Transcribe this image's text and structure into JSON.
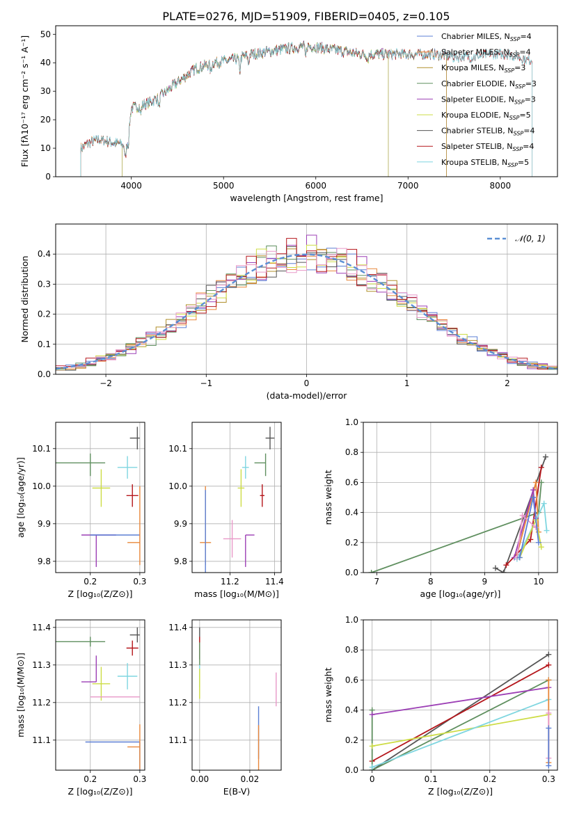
{
  "figure_title": "PLATE=0276, MJD=51909, FIBERID=0405, z=0.105",
  "chart_data": [
    {
      "id": "spectrum",
      "type": "line",
      "xlabel": "wavelength [Angstrom, rest frame]",
      "ylabel": "Flux [fλ10⁻¹⁷ erg cm⁻² s⁻¹ A⁻¹]",
      "xlim": [
        3180,
        8620
      ],
      "ylim": [
        0,
        53
      ],
      "xticks": [
        4000,
        5000,
        6000,
        7000,
        8000
      ],
      "yticks": [
        0,
        10,
        20,
        30,
        40,
        50
      ],
      "grid": false,
      "legend_position": "top-right",
      "continuum": {
        "x": [
          3450,
          3550,
          3650,
          3800,
          3950,
          4000,
          4100,
          4200,
          4300,
          4500,
          4700,
          4900,
          5100,
          5300,
          5500,
          5700,
          5900,
          6100,
          6300,
          6500,
          6700,
          6900,
          7100,
          7300,
          7500,
          7700,
          7900,
          8100,
          8300
        ],
        "y": [
          10,
          12,
          13,
          12,
          11,
          24,
          25,
          26,
          28,
          33,
          38,
          40,
          41,
          43,
          44,
          45,
          46,
          45,
          44,
          43,
          43,
          43,
          43,
          43,
          42,
          42,
          43,
          43,
          41
        ]
      },
      "series": [
        {
          "name": "Chabrier MILES, N_SSP=4",
          "label_main": "Chabrier MILES, N",
          "label_sub": "SSP",
          "label_tail": "=4",
          "color": "#5b7fd4",
          "x_range": [
            3450,
            7420
          ]
        },
        {
          "name": "Salpeter MILES, N_SSP=4",
          "label_main": "Salpeter MILES, N",
          "label_sub": "SSP",
          "label_tail": "=4",
          "color": "#e8873a",
          "x_range": [
            3450,
            7420
          ]
        },
        {
          "name": "Kroupa MILES, N_SSP=3",
          "label_main": "Kroupa MILES, N",
          "label_sub": "SSP",
          "label_tail": "=3",
          "color": "#b08f2a",
          "x_range": [
            3450,
            7420
          ]
        },
        {
          "name": "Chabrier ELODIE, N_SSP=3",
          "label_main": "Chabrier ELODIE, N",
          "label_sub": "SSP",
          "label_tail": "=3",
          "color": "#5f8f5f",
          "x_range": [
            3900,
            6790
          ]
        },
        {
          "name": "Salpeter ELODIE, N_SSP=3",
          "label_main": "Salpeter ELODIE, N",
          "label_sub": "SSP",
          "label_tail": "=3",
          "color": "#9c3fb5",
          "x_range": [
            3900,
            6790
          ]
        },
        {
          "name": "Kroupa ELODIE, N_SSP=5",
          "label_main": "Kroupa ELODIE, N",
          "label_sub": "SSP",
          "label_tail": "=5",
          "color": "#cddc45",
          "x_range": [
            3900,
            6790
          ]
        },
        {
          "name": "Chabrier STELIB, N_SSP=4",
          "label_main": "Chabrier STELIB, N",
          "label_sub": "SSP",
          "label_tail": "=4",
          "color": "#555555",
          "x_range": [
            3450,
            8350
          ]
        },
        {
          "name": "Salpeter STELIB, N_SSP=4",
          "label_main": "Salpeter STELIB, N",
          "label_sub": "SSP",
          "label_tail": "=4",
          "color": "#b5161b",
          "x_range": [
            3450,
            8350
          ]
        },
        {
          "name": "Kroupa STELIB, N_SSP=5",
          "label_main": "Kroupa STELIB, N",
          "label_sub": "SSP",
          "label_tail": "=5",
          "color": "#7fd6e0",
          "x_range": [
            3450,
            8350
          ]
        }
      ]
    },
    {
      "id": "residuals",
      "type": "bar",
      "xlabel": "(data-model)/error",
      "ylabel": "Normed distribution",
      "xlim": [
        -2.5,
        2.5
      ],
      "ylim": [
        0,
        0.5
      ],
      "xticks": [
        -2,
        -1,
        0,
        1,
        2
      ],
      "yticks": [
        0.0,
        0.1,
        0.2,
        0.3,
        0.4
      ],
      "grid": true,
      "legend_position": "top-right",
      "reference": {
        "name": "𝒩(0, 1)",
        "color": "#5b8fd4",
        "mean": 0,
        "sigma": 1
      },
      "bin_width": 0.1,
      "bin_centers_from": -2.45,
      "colors": [
        "#5b7fd4",
        "#e8873a",
        "#b08f2a",
        "#5f8f5f",
        "#9c3fb5",
        "#cddc45",
        "#555555",
        "#b5161b",
        "#e898c8"
      ]
    },
    {
      "id": "age-vs-Z",
      "type": "scatter",
      "xlabel": "Z [log₁₀(Z/Z⊙)]",
      "ylabel": "age  [log₁₀(age/yr)]",
      "xlim": [
        0.13,
        0.31
      ],
      "ylim": [
        9.77,
        10.17
      ],
      "xticks": [
        0.2,
        0.3
      ],
      "yticks": [
        9.8,
        9.9,
        10.0,
        10.1
      ],
      "grid": true,
      "points": [
        {
          "x": 0.2,
          "y": 10.062,
          "xerr": [
            0.07,
            0.03
          ],
          "yerr": [
            0.035,
            0.025
          ],
          "color": "#5f8f5f"
        },
        {
          "x": 0.295,
          "y": 10.128,
          "xerr": [
            0.015,
            0.005
          ],
          "yerr": [
            0.03,
            0.03
          ],
          "color": "#555555"
        },
        {
          "x": 0.275,
          "y": 10.05,
          "xerr": [
            0.02,
            0.02
          ],
          "yerr": [
            0.03,
            0.03
          ],
          "color": "#7fd6e0"
        },
        {
          "x": 0.222,
          "y": 9.995,
          "xerr": [
            0.018,
            0.018
          ],
          "yerr": [
            0.05,
            0.05
          ],
          "color": "#cddc45"
        },
        {
          "x": 0.285,
          "y": 9.975,
          "xerr": [
            0.012,
            0.012
          ],
          "yerr": [
            0.03,
            0.03
          ],
          "color": "#b5161b"
        },
        {
          "x": 0.212,
          "y": 9.87,
          "xerr": [
            0.03,
            0.04
          ],
          "yerr": [
            0.085,
            0.0
          ],
          "color": "#9c3fb5"
        },
        {
          "x": 0.25,
          "y": 9.87,
          "xerr": [
            0.05,
            0.05
          ],
          "yerr": [
            0.0,
            0.0
          ],
          "color": "#5b7fd4"
        },
        {
          "x": 0.3,
          "y": 9.85,
          "xerr": [
            0.025,
            0.0
          ],
          "yerr": [
            0.06,
            0.15
          ],
          "color": "#e8873a"
        }
      ]
    },
    {
      "id": "age-vs-mass",
      "type": "scatter",
      "xlabel": "mass [log₁₀(M/M⊙)]",
      "ylabel": "",
      "xlim": [
        11.03,
        11.43
      ],
      "ylim": [
        9.77,
        10.17
      ],
      "xticks": [
        11.2,
        11.4
      ],
      "yticks": [
        9.8,
        9.9,
        10.0,
        10.1
      ],
      "grid": true,
      "points": [
        {
          "x": 11.38,
          "y": 10.128,
          "xerr": [
            0.02,
            0.02
          ],
          "yerr": [
            0.03,
            0.03
          ],
          "color": "#555555"
        },
        {
          "x": 11.36,
          "y": 10.062,
          "xerr": [
            0.05,
            0.0
          ],
          "yerr": [
            0.035,
            0.025
          ],
          "color": "#5f8f5f"
        },
        {
          "x": 11.27,
          "y": 10.05,
          "xerr": [
            0.015,
            0.015
          ],
          "yerr": [
            0.03,
            0.03
          ],
          "color": "#7fd6e0"
        },
        {
          "x": 11.25,
          "y": 9.995,
          "xerr": [
            0.015,
            0.015
          ],
          "yerr": [
            0.05,
            0.05
          ],
          "color": "#cddc45"
        },
        {
          "x": 11.345,
          "y": 9.975,
          "xerr": [
            0.01,
            0.01
          ],
          "yerr": [
            0.03,
            0.03
          ],
          "color": "#b5161b"
        },
        {
          "x": 11.27,
          "y": 9.87,
          "xerr": [
            0.0,
            0.04
          ],
          "yerr": [
            0.085,
            0.0
          ],
          "color": "#9c3fb5"
        },
        {
          "x": 11.21,
          "y": 9.86,
          "xerr": [
            0.04,
            0.04
          ],
          "yerr": [
            0.05,
            0.05
          ],
          "color": "#e898c8"
        },
        {
          "x": 11.09,
          "y": 9.85,
          "xerr": [
            0.025,
            0.025
          ],
          "yerr": [
            0.06,
            0.15
          ],
          "color": "#e8873a"
        },
        {
          "x": 11.09,
          "y": 9.87,
          "xerr": [
            0.0,
            0.0
          ],
          "yerr": [
            0.12,
            0.12
          ],
          "color": "#5b7fd4"
        }
      ]
    },
    {
      "id": "weight-vs-age",
      "type": "line",
      "xlabel": "age  [log₁₀(age/yr)]",
      "ylabel": "mass weight",
      "xlim": [
        6.75,
        10.35
      ],
      "ylim": [
        0,
        1
      ],
      "xticks": [
        7,
        8,
        9,
        10
      ],
      "yticks": [
        0.0,
        0.2,
        0.4,
        0.6,
        0.8,
        1.0
      ],
      "grid": true,
      "series": [
        {
          "color": "#5f8f5f",
          "x": [
            6.9,
            10.0,
            10.05
          ],
          "y": [
            0.0,
            0.4,
            0.6
          ]
        },
        {
          "color": "#555555",
          "x": [
            9.2,
            9.35,
            10.13
          ],
          "y": [
            0.03,
            0.0,
            0.77
          ]
        },
        {
          "color": "#b5161b",
          "x": [
            9.4,
            9.85,
            10.05
          ],
          "y": [
            0.05,
            0.22,
            0.7
          ]
        },
        {
          "color": "#e8873a",
          "x": [
            9.6,
            9.95,
            10.0
          ],
          "y": [
            0.12,
            0.6,
            0.27
          ]
        },
        {
          "color": "#9c3fb5",
          "x": [
            9.55,
            9.9,
            9.95
          ],
          "y": [
            0.1,
            0.55,
            0.36
          ]
        },
        {
          "color": "#7fd6e0",
          "x": [
            9.6,
            10.1,
            10.15
          ],
          "y": [
            0.09,
            0.46,
            0.28
          ]
        },
        {
          "color": "#cddc45",
          "x": [
            9.65,
            9.95,
            10.05
          ],
          "y": [
            0.1,
            0.35,
            0.17
          ]
        },
        {
          "color": "#e898c8",
          "x": [
            9.6,
            9.7,
            9.95
          ],
          "y": [
            0.1,
            0.38,
            0.3
          ]
        },
        {
          "color": "#5b7fd4",
          "x": [
            9.65,
            9.9,
            10.0
          ],
          "y": [
            0.1,
            0.5,
            0.2
          ]
        }
      ]
    },
    {
      "id": "mass-vs-Z",
      "type": "scatter",
      "xlabel": "Z [log₁₀(Z/Z⊙)]",
      "ylabel": "mass [log₁₀(M/M⊙)]",
      "xlim": [
        0.13,
        0.31
      ],
      "ylim": [
        11.02,
        11.42
      ],
      "xticks": [
        0.2,
        0.3
      ],
      "yticks": [
        11.1,
        11.2,
        11.3,
        11.4
      ],
      "grid": true,
      "points": [
        {
          "x": 0.295,
          "y": 11.38,
          "xerr": [
            0.015,
            0.005
          ],
          "yerr": [
            0.02,
            0.02
          ],
          "color": "#555555"
        },
        {
          "x": 0.2,
          "y": 11.362,
          "xerr": [
            0.07,
            0.03
          ],
          "yerr": [
            0.013,
            0.013
          ],
          "color": "#5f8f5f"
        },
        {
          "x": 0.285,
          "y": 11.345,
          "xerr": [
            0.012,
            0.012
          ],
          "yerr": [
            0.02,
            0.02
          ],
          "color": "#b5161b"
        },
        {
          "x": 0.275,
          "y": 11.27,
          "xerr": [
            0.02,
            0.02
          ],
          "yerr": [
            0.035,
            0.035
          ],
          "color": "#7fd6e0"
        },
        {
          "x": 0.212,
          "y": 11.255,
          "xerr": [
            0.03,
            0.0
          ],
          "yerr": [
            0.0,
            0.07
          ],
          "color": "#9c3fb5"
        },
        {
          "x": 0.222,
          "y": 11.25,
          "xerr": [
            0.018,
            0.018
          ],
          "yerr": [
            0.045,
            0.045
          ],
          "color": "#cddc45"
        },
        {
          "x": 0.25,
          "y": 11.215,
          "xerr": [
            0.05,
            0.05
          ],
          "yerr": [
            0.0,
            0.0
          ],
          "color": "#e898c8"
        },
        {
          "x": 0.3,
          "y": 11.095,
          "xerr": [
            0.11,
            0.0
          ],
          "yerr": [
            0.1,
            0.0
          ],
          "color": "#5b7fd4"
        },
        {
          "x": 0.3,
          "y": 11.082,
          "xerr": [
            0.025,
            0.0
          ],
          "yerr": [
            0.06,
            0.06
          ],
          "color": "#e8873a"
        }
      ]
    },
    {
      "id": "mass-vs-EBV",
      "type": "scatter",
      "xlabel": "E(B-V)",
      "ylabel": "",
      "xlim": [
        -0.003,
        0.0325
      ],
      "ylim": [
        11.02,
        11.42
      ],
      "xticks": [
        0.0,
        0.02
      ],
      "tick_labels": [
        "0.00",
        "0.02"
      ],
      "yticks": [
        11.1,
        11.2,
        11.3,
        11.4
      ],
      "grid": true,
      "points": [
        {
          "x": 0.0,
          "y": 11.38,
          "xerr": [
            0,
            0
          ],
          "yerr": [
            0.02,
            0.02
          ],
          "color": "#555555"
        },
        {
          "x": 0.0,
          "y": 11.345,
          "xerr": [
            0,
            0
          ],
          "yerr": [
            0.03,
            0.03
          ],
          "color": "#b5161b"
        },
        {
          "x": 0.0,
          "y": 11.27,
          "xerr": [
            0,
            0
          ],
          "yerr": [
            0.03,
            0.03
          ],
          "color": "#7fd6e0"
        },
        {
          "x": 0.0,
          "y": 11.25,
          "xerr": [
            0,
            0
          ],
          "yerr": [
            0.04,
            0.04
          ],
          "color": "#cddc45"
        },
        {
          "x": 0.0,
          "y": 11.33,
          "xerr": [
            0,
            0
          ],
          "yerr": [
            0.03,
            0.03
          ],
          "color": "#5f8f5f"
        },
        {
          "x": 0.0235,
          "y": 11.12,
          "xerr": [
            0,
            0
          ],
          "yerr": [
            0.07,
            0.07
          ],
          "color": "#5b7fd4"
        },
        {
          "x": 0.0235,
          "y": 11.08,
          "xerr": [
            0,
            0
          ],
          "yerr": [
            0.06,
            0.06
          ],
          "color": "#e8873a"
        },
        {
          "x": 0.0305,
          "y": 11.235,
          "xerr": [
            0,
            0
          ],
          "yerr": [
            0.045,
            0.045
          ],
          "color": "#e898c8"
        }
      ]
    },
    {
      "id": "weight-vs-Z",
      "type": "line",
      "xlabel": "Z [log₁₀(Z/Z⊙)]",
      "ylabel": "mass weight",
      "xlim": [
        -0.015,
        0.315
      ],
      "ylim": [
        0,
        1
      ],
      "xticks": [
        0.0,
        0.1,
        0.2,
        0.3
      ],
      "yticks": [
        0.0,
        0.2,
        0.4,
        0.6,
        0.8,
        1.0
      ],
      "grid": true,
      "series": [
        {
          "color": "#555555",
          "x": [
            0.0,
            0.3
          ],
          "y": [
            0.0,
            0.77
          ]
        },
        {
          "color": "#b5161b",
          "x": [
            0.0,
            0.3
          ],
          "y": [
            0.06,
            0.7
          ]
        },
        {
          "color": "#5f8f5f",
          "x": [
            0.0,
            0.0,
            0.3
          ],
          "y": [
            0.4,
            0.0,
            0.6
          ]
        },
        {
          "color": "#9c3fb5",
          "x": [
            0.0,
            0.3
          ],
          "y": [
            0.37,
            0.55
          ]
        },
        {
          "color": "#cddc45",
          "x": [
            0.0,
            0.3
          ],
          "y": [
            0.16,
            0.37
          ]
        },
        {
          "color": "#7fd6e0",
          "x": [
            0.0,
            0.3
          ],
          "y": [
            0.02,
            0.47
          ]
        },
        {
          "color": "#e8873a",
          "x": [
            0.3,
            0.3
          ],
          "y": [
            0.05,
            0.6
          ]
        },
        {
          "color": "#e898c8",
          "x": [
            0.3,
            0.3
          ],
          "y": [
            0.08,
            0.38
          ]
        },
        {
          "color": "#5b7fd4",
          "x": [
            0.3,
            0.3
          ],
          "y": [
            0.03,
            0.28
          ]
        }
      ]
    }
  ]
}
